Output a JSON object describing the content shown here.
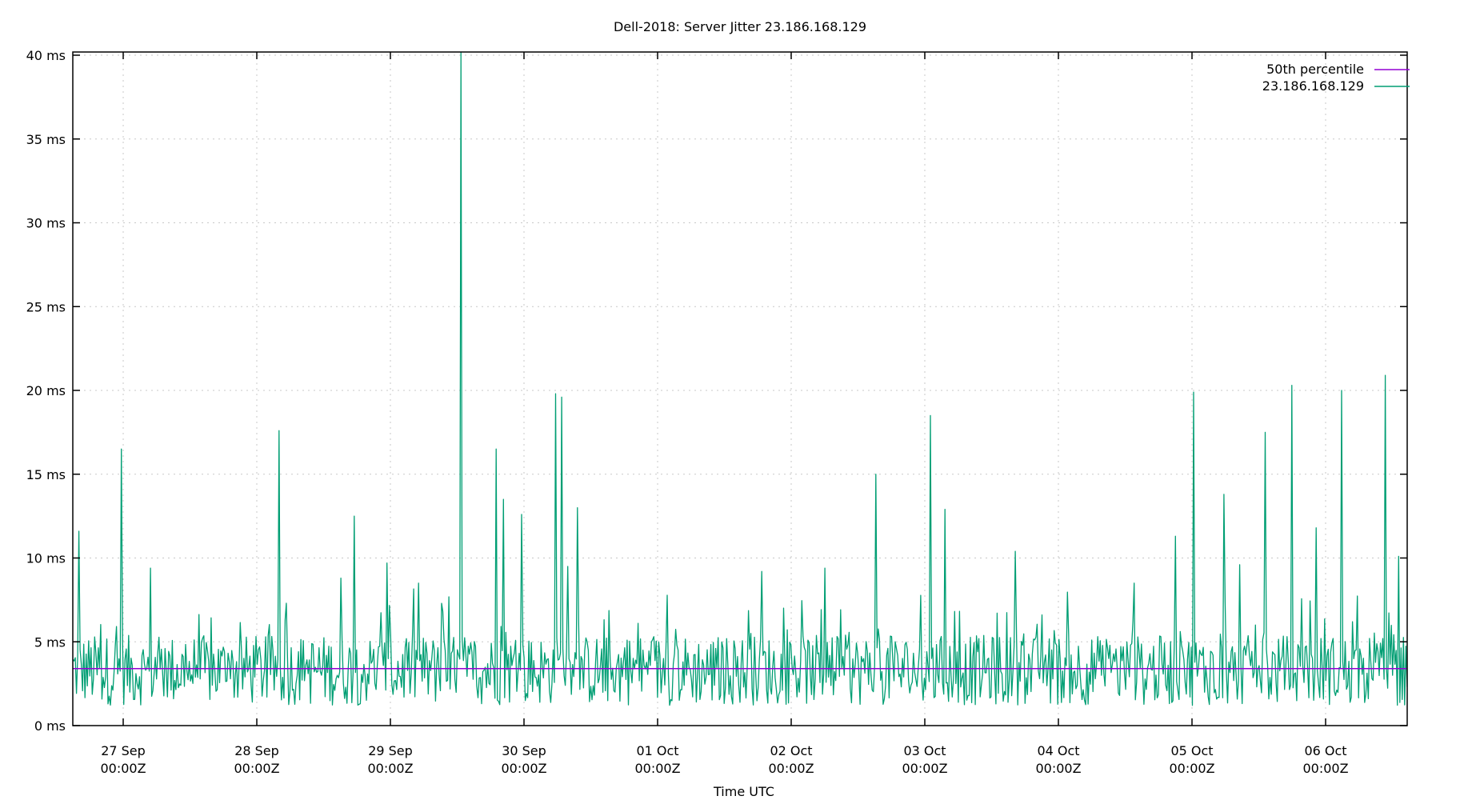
{
  "chart_data": {
    "type": "line",
    "title": "Dell-2018: Server Jitter 23.186.168.129",
    "xlabel": "Time UTC",
    "ylabel": "",
    "ylim": [
      0,
      40
    ],
    "y_unit": "ms",
    "y_ticks": [
      "0 ms",
      "5 ms",
      "10 ms",
      "15 ms",
      "20 ms",
      "25 ms",
      "30 ms",
      "35 ms",
      "40 ms"
    ],
    "x_ticks": [
      {
        "date": "27 Sep",
        "time": "00:00Z"
      },
      {
        "date": "28 Sep",
        "time": "00:00Z"
      },
      {
        "date": "29 Sep",
        "time": "00:00Z"
      },
      {
        "date": "30 Sep",
        "time": "00:00Z"
      },
      {
        "date": "01 Oct",
        "time": "00:00Z"
      },
      {
        "date": "02 Oct",
        "time": "00:00Z"
      },
      {
        "date": "03 Oct",
        "time": "00:00Z"
      },
      {
        "date": "04 Oct",
        "time": "00:00Z"
      },
      {
        "date": "05 Oct",
        "time": "00:00Z"
      },
      {
        "date": "06 Oct",
        "time": "00:00Z"
      }
    ],
    "xlim_days": [
      -0.377,
      9.61
    ],
    "grid": true,
    "legend_position": "top-right",
    "series": [
      {
        "name": "50th percentile",
        "color": "#9400d3",
        "constant": 3.4
      },
      {
        "name": "23.186.168.129",
        "color": "#009e73",
        "spikes": [
          {
            "day": -0.33,
            "value": 11.6
          },
          {
            "day": -0.01,
            "value": 16.5
          },
          {
            "day": 0.2,
            "value": 9.4
          },
          {
            "day": 1.17,
            "value": 17.6
          },
          {
            "day": 1.63,
            "value": 8.8
          },
          {
            "day": 1.73,
            "value": 12.5
          },
          {
            "day": 1.97,
            "value": 9.7
          },
          {
            "day": 2.21,
            "value": 8.5
          },
          {
            "day": 2.53,
            "value": 40.5
          },
          {
            "day": 2.79,
            "value": 16.5
          },
          {
            "day": 2.85,
            "value": 13.5
          },
          {
            "day": 2.98,
            "value": 12.6
          },
          {
            "day": 3.24,
            "value": 19.8
          },
          {
            "day": 3.28,
            "value": 19.6
          },
          {
            "day": 3.4,
            "value": 13.0
          },
          {
            "day": 3.33,
            "value": 9.5
          },
          {
            "day": 4.78,
            "value": 9.2
          },
          {
            "day": 5.25,
            "value": 9.4
          },
          {
            "day": 5.63,
            "value": 15.0
          },
          {
            "day": 6.04,
            "value": 18.5
          },
          {
            "day": 6.15,
            "value": 12.9
          },
          {
            "day": 6.68,
            "value": 10.4
          },
          {
            "day": 6.88,
            "value": 6.6
          },
          {
            "day": 7.57,
            "value": 8.5
          },
          {
            "day": 7.88,
            "value": 11.3
          },
          {
            "day": 8.01,
            "value": 19.9
          },
          {
            "day": 8.24,
            "value": 13.8
          },
          {
            "day": 8.36,
            "value": 9.6
          },
          {
            "day": 8.55,
            "value": 17.5
          },
          {
            "day": 8.75,
            "value": 20.3
          },
          {
            "day": 8.93,
            "value": 11.8
          },
          {
            "day": 9.12,
            "value": 20.0
          },
          {
            "day": 9.45,
            "value": 20.9
          },
          {
            "day": 9.55,
            "value": 10.1
          }
        ],
        "baseline_range_ms": [
          0,
          8
        ]
      }
    ]
  },
  "legend": {
    "items": [
      {
        "label": "50th percentile",
        "color": "#9400d3"
      },
      {
        "label": "23.186.168.129",
        "color": "#009e73"
      }
    ]
  }
}
